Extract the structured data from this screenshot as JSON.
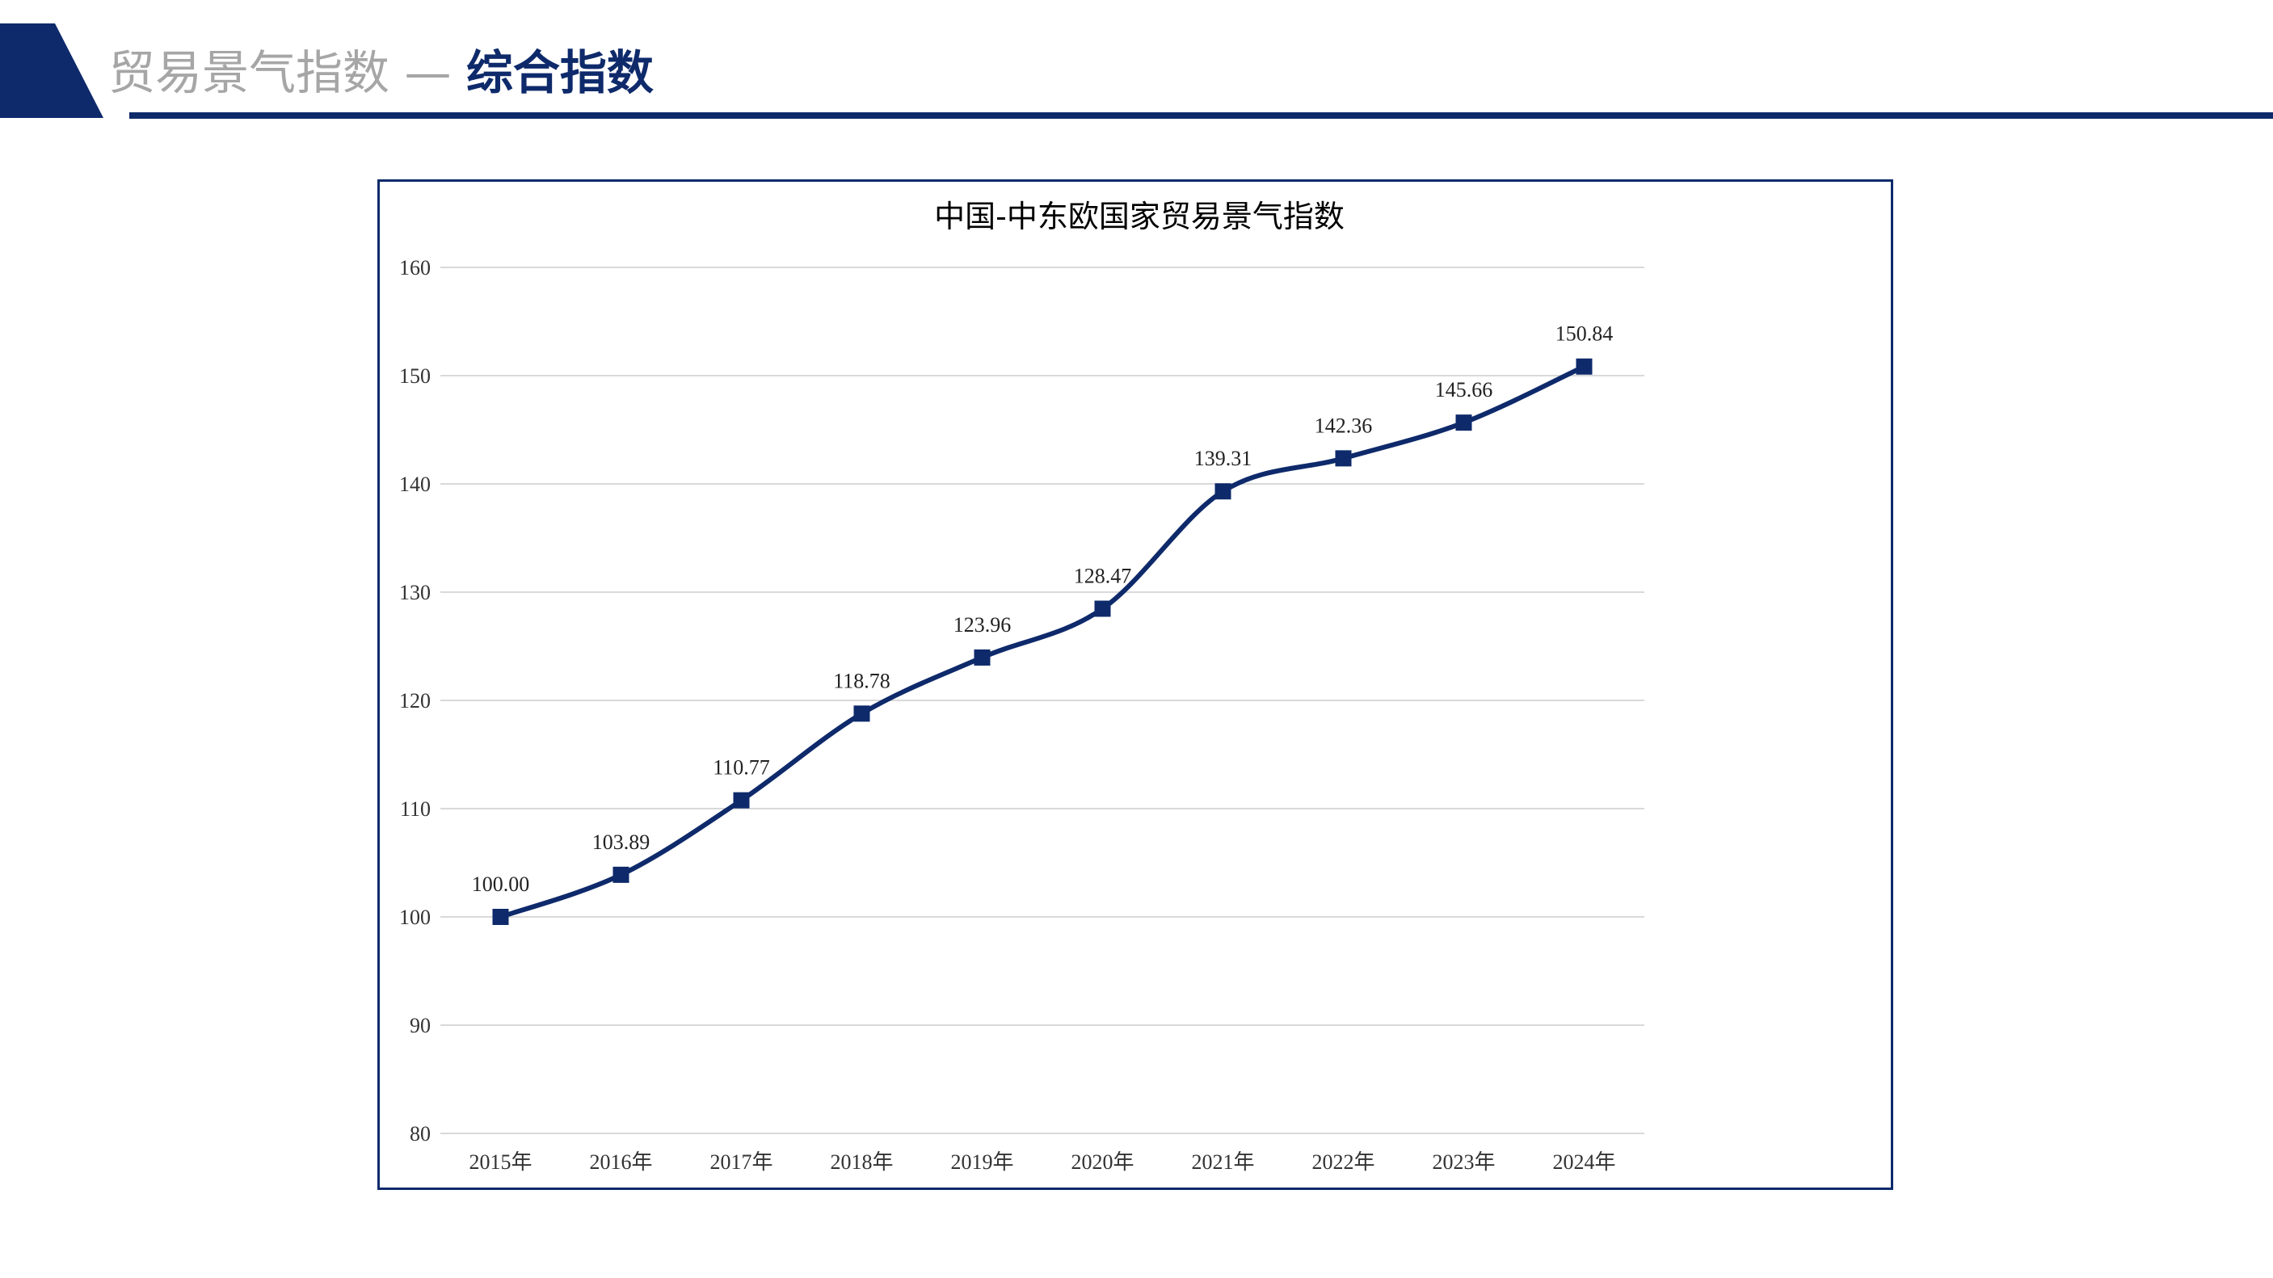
{
  "header": {
    "title_main": "贸易景气指数",
    "title_sep": "—",
    "title_accent": "综合指数",
    "accent_color": "#0e2a6b"
  },
  "chart_data": {
    "type": "line",
    "title": "中国-中东欧国家贸易景气指数",
    "xlabel": "",
    "ylabel": "",
    "categories": [
      "2015年",
      "2016年",
      "2017年",
      "2018年",
      "2019年",
      "2020年",
      "2021年",
      "2022年",
      "2023年",
      "2024年"
    ],
    "series": [
      {
        "values": [
          100.0,
          103.89,
          110.77,
          118.78,
          123.96,
          128.47,
          139.31,
          142.36,
          145.66,
          150.84
        ],
        "labels": [
          "100.00",
          "103.89",
          "110.77",
          "118.78",
          "123.96",
          "128.47",
          "139.31",
          "142.36",
          "145.66",
          "150.84"
        ],
        "color": "#0e2a6b",
        "marker": "square",
        "smooth": true
      }
    ],
    "ylim": [
      80,
      160
    ],
    "yticks": [
      80,
      90,
      100,
      110,
      120,
      130,
      140,
      150,
      160
    ],
    "ytick_labels": [
      "80",
      "90",
      "100",
      "110",
      "120",
      "130",
      "140",
      "150",
      "160"
    ],
    "grid": true,
    "grid_color": "#d9d9d9",
    "legend": "none"
  }
}
